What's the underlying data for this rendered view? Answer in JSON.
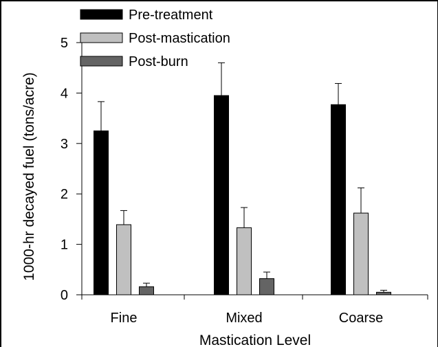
{
  "chart_data": {
    "type": "bar",
    "categories": [
      "Fine",
      "Mixed",
      "Coarse"
    ],
    "series": [
      {
        "name": "Pre-treatment",
        "color": "#000000",
        "values": [
          3.25,
          3.95,
          3.77
        ],
        "errors": [
          0.58,
          0.65,
          0.42
        ]
      },
      {
        "name": "Post-mastication",
        "color": "#c0c0c0",
        "values": [
          1.39,
          1.33,
          1.62
        ],
        "errors": [
          0.28,
          0.4,
          0.5
        ]
      },
      {
        "name": "Post-burn",
        "color": "#646464",
        "values": [
          0.16,
          0.32,
          0.05
        ],
        "errors": [
          0.07,
          0.13,
          0.04
        ]
      }
    ],
    "xlabel": "Mastication Level",
    "ylabel": "1000-hr decayed fuel (tons/acre)",
    "ylim": [
      0,
      5
    ],
    "yticks": [
      "0",
      "1",
      "2",
      "3",
      "4",
      "5"
    ],
    "legend_position": "top-left",
    "grid": false
  }
}
